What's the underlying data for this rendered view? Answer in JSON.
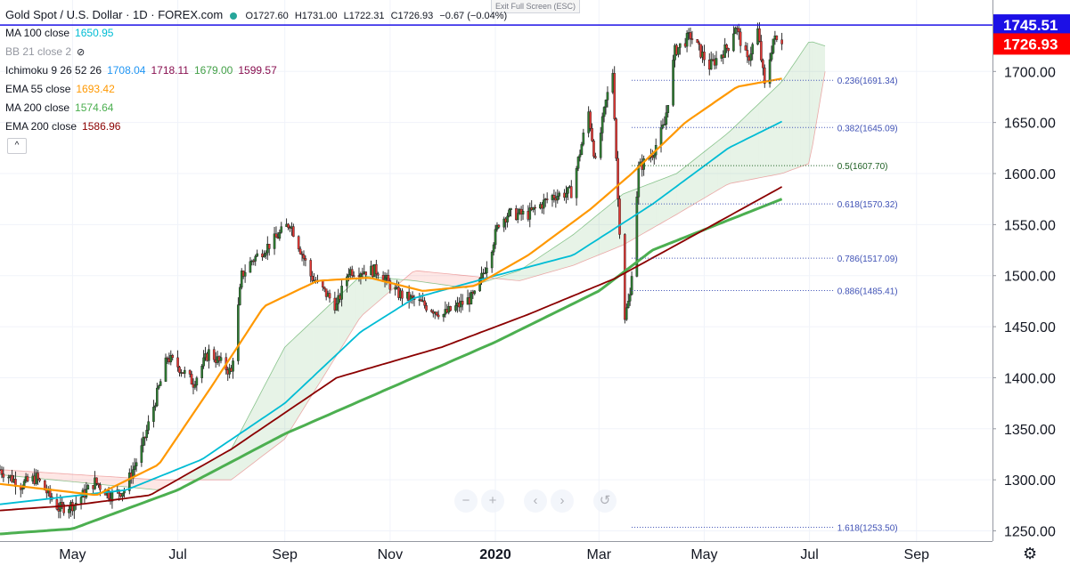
{
  "header": {
    "title": "Gold Spot / U.S. Dollar · 1D · FOREX.com",
    "open": "O1727.60",
    "high": "H1731.00",
    "low": "L1722.31",
    "close": "C1726.93",
    "change": "−0.67 (−0.04%)",
    "exit_fullscreen": "Exit Full Screen (ESC)"
  },
  "legend": [
    {
      "label": "MA 100 close",
      "values": [
        "1650.95"
      ],
      "colors": [
        "#00bcd4"
      ]
    },
    {
      "label": "BB 21 close 2",
      "values": [],
      "colors": [],
      "hidden": true
    },
    {
      "label": "Ichimoku 9 26 52 26",
      "values": [
        "1708.04",
        "1718.11",
        "1679.00",
        "1599.57"
      ],
      "colors": [
        "#2196f3",
        "#880e4f",
        "#43a047",
        "#880e4f"
      ]
    },
    {
      "label": "EMA 55 close",
      "values": [
        "1693.42"
      ],
      "colors": [
        "#ff9800"
      ]
    },
    {
      "label": "MA 200 close",
      "values": [
        "1574.64"
      ],
      "colors": [
        "#4caf50"
      ]
    },
    {
      "label": "EMA 200 close",
      "values": [
        "1586.96"
      ],
      "colors": [
        "#8b0000"
      ]
    }
  ],
  "controls": {
    "collapse": "^",
    "zoom_out": "−",
    "zoom_in": "+",
    "scroll_left": "‹",
    "scroll_right": "›",
    "reset": "↺",
    "settings": "⚙"
  },
  "chart_data": {
    "type": "candlestick",
    "symbol": "Gold Spot / U.S. Dollar",
    "timeframe": "1D",
    "ylim": [
      1240,
      1770
    ],
    "y_ticks": [
      1250,
      1300,
      1350,
      1400,
      1450,
      1500,
      1550,
      1600,
      1650,
      1700
    ],
    "x_ticks": [
      "May",
      "Jul",
      "Sep",
      "Nov",
      "2020",
      "Mar",
      "May",
      "Jul",
      "Sep"
    ],
    "x_range": [
      "2019-03-20",
      "2020-10-15"
    ],
    "horizontal_line": {
      "price": 1745.51,
      "label": "1745.51",
      "color": "#1c10e6"
    },
    "last_price": {
      "price": 1726.93,
      "label": "1726.93",
      "color": "#ff0000"
    },
    "fibonacci": [
      {
        "ratio": "0.236",
        "price": 1691.34,
        "label": "0.236(1691.34)",
        "color": "#3f51b5"
      },
      {
        "ratio": "0.382",
        "price": 1645.09,
        "label": "0.382(1645.09)",
        "color": "#3f51b5"
      },
      {
        "ratio": "0.5",
        "price": 1607.7,
        "label": "0.5(1607.70)",
        "color": "#1b5e20"
      },
      {
        "ratio": "0.618",
        "price": 1570.32,
        "label": "0.618(1570.32)",
        "color": "#3f51b5"
      },
      {
        "ratio": "0.786",
        "price": 1517.09,
        "label": "0.786(1517.09)",
        "color": "#3f51b5"
      },
      {
        "ratio": "0.886",
        "price": 1485.41,
        "label": "0.886(1485.41)",
        "color": "#3f51b5"
      },
      {
        "ratio": "1.618",
        "price": 1253.5,
        "label": "1.618(1253.50)",
        "color": "#3f51b5"
      }
    ],
    "price_path": [
      [
        "2019-03-20",
        1310
      ],
      [
        "2019-04-01",
        1295
      ],
      [
        "2019-04-10",
        1302
      ],
      [
        "2019-04-23",
        1272
      ],
      [
        "2019-05-02",
        1276
      ],
      [
        "2019-05-14",
        1298
      ],
      [
        "2019-05-23",
        1285
      ],
      [
        "2019-05-31",
        1290
      ],
      [
        "2019-06-10",
        1330
      ],
      [
        "2019-06-20",
        1390
      ],
      [
        "2019-06-25",
        1420
      ],
      [
        "2019-07-02",
        1410
      ],
      [
        "2019-07-10",
        1395
      ],
      [
        "2019-07-19",
        1425
      ],
      [
        "2019-08-01",
        1405
      ],
      [
        "2019-08-07",
        1500
      ],
      [
        "2019-08-13",
        1515
      ],
      [
        "2019-08-26",
        1535
      ],
      [
        "2019-09-04",
        1552
      ],
      [
        "2019-09-16",
        1500
      ],
      [
        "2019-10-01",
        1470
      ],
      [
        "2019-10-08",
        1505
      ],
      [
        "2019-10-25",
        1505
      ],
      [
        "2019-11-05",
        1483
      ],
      [
        "2019-11-20",
        1472
      ],
      [
        "2019-12-02",
        1462
      ],
      [
        "2019-12-12",
        1472
      ],
      [
        "2019-12-20",
        1480
      ],
      [
        "2019-12-27",
        1512
      ],
      [
        "2020-01-03",
        1552
      ],
      [
        "2020-01-08",
        1560
      ],
      [
        "2020-01-20",
        1560
      ],
      [
        "2020-02-03",
        1578
      ],
      [
        "2020-02-14",
        1582
      ],
      [
        "2020-02-24",
        1660
      ],
      [
        "2020-02-28",
        1610
      ],
      [
        "2020-03-05",
        1670
      ],
      [
        "2020-03-09",
        1700
      ],
      [
        "2020-03-12",
        1575
      ],
      [
        "2020-03-16",
        1460
      ],
      [
        "2020-03-19",
        1480
      ],
      [
        "2020-03-24",
        1605
      ],
      [
        "2020-04-01",
        1620
      ],
      [
        "2020-04-08",
        1648
      ],
      [
        "2020-04-14",
        1720
      ],
      [
        "2020-04-23",
        1735
      ],
      [
        "2020-05-04",
        1705
      ],
      [
        "2020-05-15",
        1725
      ],
      [
        "2020-05-19",
        1745
      ],
      [
        "2020-05-26",
        1710
      ],
      [
        "2020-06-01",
        1740
      ],
      [
        "2020-06-05",
        1685
      ],
      [
        "2020-06-10",
        1732
      ],
      [
        "2020-06-15",
        1726.93
      ]
    ],
    "series": [
      {
        "name": "MA 100 close",
        "color": "#00bcd4",
        "points": [
          [
            "2019-03-20",
            1276
          ],
          [
            "2019-06-01",
            1290
          ],
          [
            "2019-07-15",
            1320
          ],
          [
            "2019-09-01",
            1375
          ],
          [
            "2019-10-15",
            1445
          ],
          [
            "2019-11-15",
            1478
          ],
          [
            "2020-01-01",
            1500
          ],
          [
            "2020-02-15",
            1520
          ],
          [
            "2020-04-01",
            1570
          ],
          [
            "2020-05-15",
            1625
          ],
          [
            "2020-06-15",
            1651
          ]
        ]
      },
      {
        "name": "EMA 55 close",
        "color": "#ff9800",
        "points": [
          [
            "2019-03-20",
            1296
          ],
          [
            "2019-05-15",
            1285
          ],
          [
            "2019-06-20",
            1315
          ],
          [
            "2019-07-20",
            1390
          ],
          [
            "2019-08-20",
            1470
          ],
          [
            "2019-09-20",
            1495
          ],
          [
            "2019-10-20",
            1498
          ],
          [
            "2019-11-20",
            1485
          ],
          [
            "2019-12-20",
            1490
          ],
          [
            "2020-01-20",
            1520
          ],
          [
            "2020-02-25",
            1565
          ],
          [
            "2020-03-20",
            1600
          ],
          [
            "2020-04-20",
            1650
          ],
          [
            "2020-05-20",
            1685
          ],
          [
            "2020-06-15",
            1693
          ]
        ]
      },
      {
        "name": "MA 200 close",
        "color": "#4caf50",
        "points": [
          [
            "2019-03-20",
            1247
          ],
          [
            "2019-05-01",
            1252
          ],
          [
            "2019-07-01",
            1290
          ],
          [
            "2019-09-01",
            1345
          ],
          [
            "2019-11-01",
            1390
          ],
          [
            "2020-01-01",
            1435
          ],
          [
            "2020-03-01",
            1485
          ],
          [
            "2020-04-01",
            1525
          ],
          [
            "2020-05-01",
            1545
          ],
          [
            "2020-06-15",
            1575
          ]
        ]
      },
      {
        "name": "EMA 200 close",
        "color": "#8b0000",
        "points": [
          [
            "2019-03-20",
            1270
          ],
          [
            "2019-05-01",
            1275
          ],
          [
            "2019-06-15",
            1285
          ],
          [
            "2019-08-01",
            1330
          ],
          [
            "2019-10-01",
            1400
          ],
          [
            "2019-12-01",
            1430
          ],
          [
            "2020-01-20",
            1462
          ],
          [
            "2020-03-10",
            1497
          ],
          [
            "2020-05-01",
            1545
          ],
          [
            "2020-06-15",
            1587
          ]
        ]
      }
    ],
    "ichimoku_cloud": {
      "span_a": [
        [
          "2019-03-20",
          1305
        ],
        [
          "2019-06-20",
          1290
        ],
        [
          "2019-08-01",
          1330
        ],
        [
          "2019-09-01",
          1430
        ],
        [
          "2019-10-15",
          1500
        ],
        [
          "2019-11-15",
          1495
        ],
        [
          "2019-12-15",
          1488
        ],
        [
          "2020-01-15",
          1505
        ],
        [
          "2020-02-15",
          1540
        ],
        [
          "2020-03-15",
          1580
        ],
        [
          "2020-04-15",
          1600
        ],
        [
          "2020-05-15",
          1640
        ],
        [
          "2020-06-15",
          1690
        ],
        [
          "2020-07-01",
          1730
        ],
        [
          "2020-07-10",
          1725
        ]
      ],
      "span_b": [
        [
          "2019-03-20",
          1310
        ],
        [
          "2019-06-20",
          1300
        ],
        [
          "2019-08-01",
          1300
        ],
        [
          "2019-09-01",
          1340
        ],
        [
          "2019-10-15",
          1460
        ],
        [
          "2019-11-15",
          1505
        ],
        [
          "2019-12-15",
          1500
        ],
        [
          "2020-01-15",
          1495
        ],
        [
          "2020-02-15",
          1510
        ],
        [
          "2020-03-15",
          1530
        ],
        [
          "2020-04-15",
          1560
        ],
        [
          "2020-05-15",
          1590
        ],
        [
          "2020-06-15",
          1600
        ],
        [
          "2020-07-01",
          1610
        ],
        [
          "2020-07-10",
          1700
        ]
      ],
      "bull_color": "rgba(67,160,71,0.13)",
      "bear_color": "rgba(244,67,54,0.13)"
    }
  }
}
